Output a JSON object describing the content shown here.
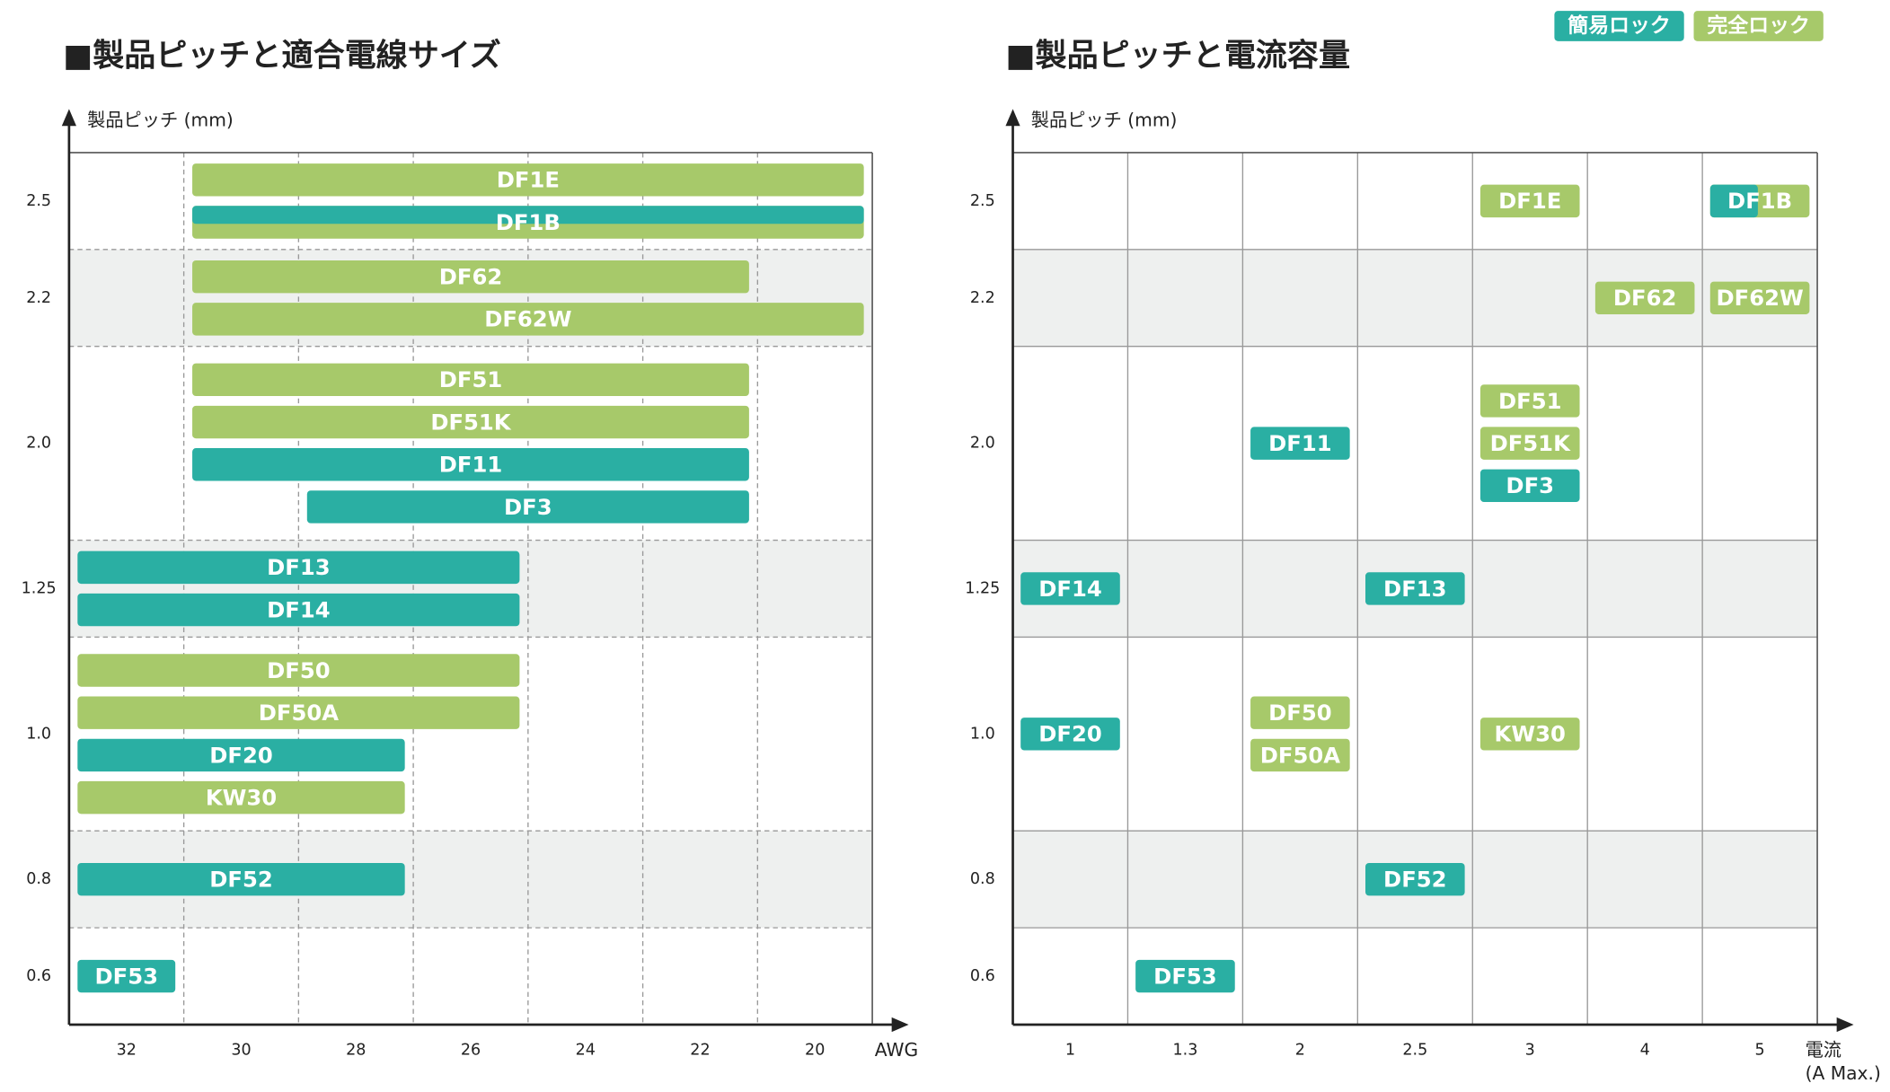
{
  "legend": [
    {
      "label": "簡易ロック",
      "color": "#2aafa3"
    },
    {
      "label": "完全ロック",
      "color": "#a7c96a"
    }
  ],
  "charts": [
    {
      "title": "■製品ピッチと適合電線サイズ",
      "y_label": "製品ピッチ (mm)",
      "x_label": [
        "AWG"
      ],
      "x_categories": [
        32,
        30,
        28,
        26,
        24,
        22,
        20
      ],
      "rows": [
        "2.5",
        "2.2",
        "2.0",
        "1.25",
        "1.0",
        "0.8",
        "0.6"
      ],
      "items": [
        {
          "label": "DF1E",
          "row": "2.5",
          "x": [
            30,
            20
          ],
          "lock": [
            "完全ロック"
          ]
        },
        {
          "label": "DF1B",
          "row": "2.5",
          "x": [
            30,
            20
          ],
          "lock": [
            "簡易ロック",
            "完全ロック"
          ]
        },
        {
          "label": "DF62",
          "row": "2.2",
          "x": [
            30,
            22
          ],
          "lock": [
            "完全ロック"
          ]
        },
        {
          "label": "DF62W",
          "row": "2.2",
          "x": [
            30,
            20
          ],
          "lock": [
            "完全ロック"
          ]
        },
        {
          "label": "DF51",
          "row": "2.0",
          "x": [
            30,
            22
          ],
          "lock": [
            "完全ロック"
          ]
        },
        {
          "label": "DF51K",
          "row": "2.0",
          "x": [
            30,
            22
          ],
          "lock": [
            "完全ロック"
          ]
        },
        {
          "label": "DF11",
          "row": "2.0",
          "x": [
            30,
            22
          ],
          "lock": [
            "簡易ロック"
          ]
        },
        {
          "label": "DF3",
          "row": "2.0",
          "x": [
            28,
            22
          ],
          "lock": [
            "簡易ロック"
          ]
        },
        {
          "label": "DF13",
          "row": "1.25",
          "x": [
            32,
            26
          ],
          "lock": [
            "簡易ロック"
          ]
        },
        {
          "label": "DF14",
          "row": "1.25",
          "x": [
            32,
            26
          ],
          "lock": [
            "簡易ロック"
          ]
        },
        {
          "label": "DF50",
          "row": "1.0",
          "x": [
            32,
            26
          ],
          "lock": [
            "完全ロック"
          ]
        },
        {
          "label": "DF50A",
          "row": "1.0",
          "x": [
            32,
            26
          ],
          "lock": [
            "完全ロック"
          ]
        },
        {
          "label": "DF20",
          "row": "1.0",
          "x": [
            32,
            28
          ],
          "lock": [
            "簡易ロック"
          ]
        },
        {
          "label": "KW30",
          "row": "1.0",
          "x": [
            32,
            28
          ],
          "lock": [
            "完全ロック"
          ]
        },
        {
          "label": "DF52",
          "row": "0.8",
          "x": [
            32,
            28
          ],
          "lock": [
            "簡易ロック"
          ]
        },
        {
          "label": "DF53",
          "row": "0.6",
          "x": [
            32,
            32
          ],
          "lock": [
            "簡易ロック"
          ]
        }
      ]
    },
    {
      "title": "■製品ピッチと電流容量",
      "y_label": "製品ピッチ (mm)",
      "x_label": [
        "電流",
        "(A Max.)"
      ],
      "x_categories": [
        1,
        1.3,
        2,
        2.5,
        3,
        4,
        5
      ],
      "rows": [
        "2.5",
        "2.2",
        "2.0",
        "1.25",
        "1.0",
        "0.8",
        "0.6"
      ],
      "items": [
        {
          "label": "DF1E",
          "row": "2.5",
          "x": 3,
          "lock": [
            "完全ロック"
          ]
        },
        {
          "label": "DF1B",
          "row": "2.5",
          "x": 5,
          "lock": [
            "簡易ロック",
            "完全ロック"
          ]
        },
        {
          "label": "DF62",
          "row": "2.2",
          "x": 4,
          "lock": [
            "完全ロック"
          ]
        },
        {
          "label": "DF62W",
          "row": "2.2",
          "x": 5,
          "lock": [
            "完全ロック"
          ]
        },
        {
          "label": "DF51",
          "row": "2.0",
          "x": 3,
          "lock": [
            "完全ロック"
          ]
        },
        {
          "label": "DF51K",
          "row": "2.0",
          "x": 3,
          "lock": [
            "完全ロック"
          ]
        },
        {
          "label": "DF3",
          "row": "2.0",
          "x": 3,
          "lock": [
            "簡易ロック"
          ]
        },
        {
          "label": "DF11",
          "row": "2.0",
          "x": 2,
          "lock": [
            "簡易ロック"
          ]
        },
        {
          "label": "DF14",
          "row": "1.25",
          "x": 1,
          "lock": [
            "簡易ロック"
          ]
        },
        {
          "label": "DF13",
          "row": "1.25",
          "x": 2.5,
          "lock": [
            "簡易ロック"
          ]
        },
        {
          "label": "DF20",
          "row": "1.0",
          "x": 1,
          "lock": [
            "簡易ロック"
          ]
        },
        {
          "label": "DF50",
          "row": "1.0",
          "x": 2,
          "lock": [
            "完全ロック"
          ]
        },
        {
          "label": "DF50A",
          "row": "1.0",
          "x": 2,
          "lock": [
            "完全ロック"
          ]
        },
        {
          "label": "KW30",
          "row": "1.0",
          "x": 3,
          "lock": [
            "完全ロック"
          ]
        },
        {
          "label": "DF52",
          "row": "0.8",
          "x": 2.5,
          "lock": [
            "簡易ロック"
          ]
        },
        {
          "label": "DF53",
          "row": "0.6",
          "x": 1.3,
          "lock": [
            "簡易ロック"
          ]
        }
      ]
    }
  ]
}
